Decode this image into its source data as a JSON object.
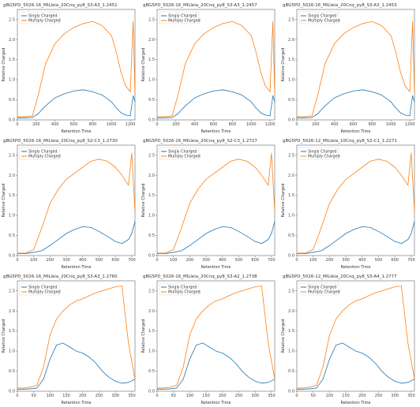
{
  "chart_data": [
    {
      "type": "line",
      "title": "gBG5PD_5026-16_MILleia_20Cnq_py8_S3-A3_1.2451",
      "xlabel": "Retention Time",
      "ylabel": "Relative Charged",
      "xticks": [
        0,
        200,
        400,
        600,
        800,
        1000,
        1200
      ],
      "xlim": [
        0,
        1250
      ],
      "yticks": [
        0.0,
        0.5,
        1.0,
        1.5,
        2.0,
        2.5
      ],
      "ylim": [
        0,
        2.75
      ],
      "series": [
        {
          "name": "Singly Charged",
          "color": "#1f77b4",
          "x": [
            0,
            80,
            160,
            220,
            300,
            400,
            500,
            600,
            700,
            800,
            900,
            1000,
            1050,
            1100,
            1150,
            1200,
            1230,
            1250
          ],
          "values": [
            0.05,
            0.05,
            0.06,
            0.15,
            0.35,
            0.55,
            0.65,
            0.72,
            0.75,
            0.7,
            0.62,
            0.45,
            0.3,
            0.18,
            0.12,
            0.1,
            0.6,
            0.45
          ]
        },
        {
          "name": "Multiply Charged",
          "color": "#ff7f0e",
          "x": [
            0,
            80,
            160,
            220,
            300,
            400,
            500,
            600,
            700,
            800,
            900,
            1000,
            1050,
            1100,
            1150,
            1200,
            1230,
            1250
          ],
          "values": [
            0.08,
            0.08,
            0.1,
            0.6,
            1.4,
            1.9,
            2.15,
            2.3,
            2.4,
            2.45,
            2.35,
            2.1,
            1.7,
            1.2,
            0.85,
            0.7,
            2.45,
            0.65
          ]
        }
      ]
    },
    {
      "type": "line",
      "title": "gBG5PD_5026-16_MILleia_20Cnq_py8_S3-A3_1.2457",
      "xlabel": "Retention Time",
      "ylabel": "Relative Charged",
      "xticks": [
        0,
        200,
        400,
        600,
        800,
        1000,
        1200
      ],
      "xlim": [
        0,
        1250
      ],
      "yticks": [
        0.0,
        0.5,
        1.0,
        1.5,
        2.0,
        2.5
      ],
      "ylim": [
        0,
        2.75
      ],
      "series": [
        {
          "name": "Singly Charged",
          "color": "#1f77b4",
          "x": [
            0,
            80,
            160,
            220,
            300,
            400,
            500,
            600,
            700,
            800,
            900,
            1000,
            1050,
            1100,
            1150,
            1200,
            1230,
            1250
          ],
          "values": [
            0.05,
            0.05,
            0.06,
            0.15,
            0.35,
            0.55,
            0.65,
            0.72,
            0.75,
            0.7,
            0.62,
            0.45,
            0.3,
            0.18,
            0.12,
            0.1,
            0.6,
            0.45
          ]
        },
        {
          "name": "Multiply Charged",
          "color": "#ff7f0e",
          "x": [
            0,
            80,
            160,
            220,
            300,
            400,
            500,
            600,
            700,
            800,
            900,
            1000,
            1050,
            1100,
            1150,
            1200,
            1230,
            1250
          ],
          "values": [
            0.08,
            0.08,
            0.1,
            0.6,
            1.4,
            1.9,
            2.15,
            2.3,
            2.4,
            2.45,
            2.35,
            2.1,
            1.7,
            1.2,
            0.85,
            0.7,
            2.45,
            0.65
          ]
        }
      ]
    },
    {
      "type": "line",
      "title": "gBG5PD_5026-16_MILleia_20Cnq_py8_S3-A3_1.2453",
      "xlabel": "Retention Time",
      "ylabel": "Relative Charged",
      "xticks": [
        0,
        200,
        400,
        600,
        800,
        1000,
        1200
      ],
      "xlim": [
        0,
        1250
      ],
      "yticks": [
        0.0,
        0.5,
        1.0,
        1.5,
        2.0,
        2.5
      ],
      "ylim": [
        0,
        2.75
      ],
      "series": [
        {
          "name": "Singly Charged",
          "color": "#1f77b4",
          "x": [
            0,
            80,
            160,
            220,
            300,
            400,
            500,
            600,
            700,
            800,
            900,
            1000,
            1050,
            1100,
            1150,
            1200,
            1230,
            1250
          ],
          "values": [
            0.05,
            0.05,
            0.06,
            0.15,
            0.35,
            0.55,
            0.65,
            0.72,
            0.75,
            0.7,
            0.62,
            0.45,
            0.3,
            0.18,
            0.12,
            0.1,
            0.6,
            0.45
          ]
        },
        {
          "name": "Multiply Charged",
          "color": "#ff7f0e",
          "x": [
            0,
            80,
            160,
            220,
            300,
            400,
            500,
            600,
            700,
            800,
            900,
            1000,
            1050,
            1100,
            1150,
            1200,
            1230,
            1250
          ],
          "values": [
            0.08,
            0.08,
            0.1,
            0.6,
            1.4,
            1.9,
            2.15,
            2.3,
            2.4,
            2.45,
            2.35,
            2.1,
            1.7,
            1.2,
            0.85,
            0.7,
            2.45,
            0.65
          ]
        }
      ]
    },
    {
      "type": "line",
      "title": "gBG5PD_5026-16_MILleia_20Cnq_py8_S2-C3_1.2730",
      "xlabel": "Retention Time",
      "ylabel": "Relative Charged",
      "xticks": [
        0,
        100,
        200,
        300,
        400,
        500,
        600,
        700
      ],
      "xlim": [
        0,
        720
      ],
      "yticks": [
        0.0,
        0.5,
        1.0,
        1.5,
        2.0,
        2.5
      ],
      "ylim": [
        0,
        2.75
      ],
      "series": [
        {
          "name": "Singly Charged",
          "color": "#1f77b4",
          "x": [
            0,
            50,
            100,
            150,
            200,
            250,
            300,
            350,
            400,
            450,
            500,
            550,
            600,
            640,
            680,
            700,
            720
          ],
          "values": [
            0.05,
            0.05,
            0.08,
            0.12,
            0.25,
            0.4,
            0.55,
            0.65,
            0.72,
            0.7,
            0.6,
            0.48,
            0.35,
            0.3,
            0.4,
            0.55,
            0.85
          ]
        },
        {
          "name": "Multiply Charged",
          "color": "#ff7f0e",
          "x": [
            0,
            50,
            100,
            150,
            200,
            250,
            300,
            350,
            400,
            450,
            500,
            550,
            600,
            640,
            680,
            700,
            720
          ],
          "values": [
            0.06,
            0.06,
            0.15,
            0.7,
            1.3,
            1.65,
            1.9,
            2.05,
            2.2,
            2.35,
            2.4,
            2.35,
            2.2,
            2.0,
            1.75,
            2.55,
            1.1
          ]
        }
      ]
    },
    {
      "type": "line",
      "title": "gBG5PD_5026-16_MILleia_20Cnq_py8_S2-C3_1.2727",
      "xlabel": "Retention Time",
      "ylabel": "Relative Charged",
      "xticks": [
        0,
        100,
        200,
        300,
        400,
        500,
        600,
        700
      ],
      "xlim": [
        0,
        720
      ],
      "yticks": [
        0.0,
        0.5,
        1.0,
        1.5,
        2.0,
        2.5
      ],
      "ylim": [
        0,
        2.75
      ],
      "series": [
        {
          "name": "Singly Charged",
          "color": "#1f77b4",
          "x": [
            0,
            50,
            100,
            150,
            200,
            250,
            300,
            350,
            400,
            450,
            500,
            550,
            600,
            640,
            680,
            700,
            720
          ],
          "values": [
            0.05,
            0.05,
            0.08,
            0.12,
            0.25,
            0.4,
            0.55,
            0.65,
            0.72,
            0.7,
            0.6,
            0.48,
            0.35,
            0.3,
            0.4,
            0.55,
            0.85
          ]
        },
        {
          "name": "Multiply Charged",
          "color": "#ff7f0e",
          "x": [
            0,
            50,
            100,
            150,
            200,
            250,
            300,
            350,
            400,
            450,
            500,
            550,
            600,
            640,
            680,
            700,
            720
          ],
          "values": [
            0.06,
            0.06,
            0.15,
            0.7,
            1.3,
            1.65,
            1.9,
            2.05,
            2.2,
            2.35,
            2.4,
            2.35,
            2.2,
            2.0,
            1.75,
            2.55,
            1.1
          ]
        }
      ]
    },
    {
      "type": "line",
      "title": "gBG5PD_5026-12_MILleia_10Cnq_py8_S2-C1_1.2271",
      "xlabel": "Retention Time",
      "ylabel": "Relative Charged",
      "xticks": [
        0,
        100,
        200,
        300,
        400,
        500,
        600,
        700
      ],
      "xlim": [
        0,
        720
      ],
      "yticks": [
        0.0,
        0.5,
        1.0,
        1.5,
        2.0,
        2.5
      ],
      "ylim": [
        0,
        2.75
      ],
      "series": [
        {
          "name": "Singly Charged",
          "color": "#1f77b4",
          "x": [
            0,
            50,
            100,
            150,
            200,
            250,
            300,
            350,
            400,
            450,
            500,
            550,
            600,
            640,
            680,
            700,
            720
          ],
          "values": [
            0.05,
            0.05,
            0.08,
            0.12,
            0.25,
            0.4,
            0.55,
            0.65,
            0.72,
            0.7,
            0.6,
            0.48,
            0.35,
            0.3,
            0.4,
            0.55,
            0.85
          ]
        },
        {
          "name": "Multiply Charged",
          "color": "#ff7f0e",
          "x": [
            0,
            50,
            100,
            150,
            200,
            250,
            300,
            350,
            400,
            450,
            500,
            550,
            600,
            640,
            680,
            700,
            720
          ],
          "values": [
            0.06,
            0.06,
            0.15,
            0.7,
            1.3,
            1.65,
            1.9,
            2.05,
            2.2,
            2.35,
            2.4,
            2.35,
            2.2,
            2.0,
            1.75,
            2.55,
            1.1
          ]
        }
      ]
    },
    {
      "type": "line",
      "title": "gBG5PD_5026-16_MILleia_20Cnq_py8_S3-A3_1.2760",
      "xlabel": "Retention Time",
      "ylabel": "Relative Charged",
      "xticks": [
        0,
        50,
        100,
        150,
        200,
        250,
        300,
        350
      ],
      "xlim": [
        0,
        360
      ],
      "yticks": [
        0.0,
        0.5,
        1.0,
        1.5,
        2.0,
        2.5
      ],
      "ylim": [
        0,
        2.75
      ],
      "series": [
        {
          "name": "Singly Charged",
          "color": "#1f77b4",
          "x": [
            0,
            20,
            40,
            60,
            80,
            100,
            120,
            140,
            160,
            180,
            200,
            220,
            240,
            260,
            280,
            300,
            320,
            340,
            360
          ],
          "values": [
            0.05,
            0.05,
            0.06,
            0.08,
            0.3,
            0.8,
            1.15,
            1.2,
            1.1,
            1.0,
            0.95,
            0.85,
            0.7,
            0.5,
            0.35,
            0.25,
            0.2,
            0.22,
            0.3
          ]
        },
        {
          "name": "Multiply Charged",
          "color": "#ff7f0e",
          "x": [
            0,
            20,
            40,
            60,
            80,
            100,
            120,
            140,
            160,
            180,
            200,
            220,
            240,
            260,
            280,
            300,
            320,
            340,
            360
          ],
          "values": [
            0.08,
            0.08,
            0.1,
            0.15,
            0.6,
            1.4,
            1.8,
            2.0,
            2.15,
            2.25,
            2.3,
            2.38,
            2.45,
            2.5,
            2.55,
            2.6,
            2.62,
            1.2,
            0.3
          ]
        }
      ]
    },
    {
      "type": "line",
      "title": "gBG5PD_5026-16_MILleia_20Cnq_py8_S3-A2_1.2738",
      "xlabel": "Retention Time",
      "ylabel": "Relative Charged",
      "xticks": [
        0,
        50,
        100,
        150,
        200,
        250,
        300,
        350
      ],
      "xlim": [
        0,
        360
      ],
      "yticks": [
        0.0,
        0.5,
        1.0,
        1.5,
        2.0,
        2.5
      ],
      "ylim": [
        0,
        2.75
      ],
      "series": [
        {
          "name": "Singly Charged",
          "color": "#1f77b4",
          "x": [
            0,
            20,
            40,
            60,
            80,
            100,
            120,
            140,
            160,
            180,
            200,
            220,
            240,
            260,
            280,
            300,
            320,
            340,
            360
          ],
          "values": [
            0.05,
            0.05,
            0.06,
            0.08,
            0.3,
            0.8,
            1.15,
            1.2,
            1.1,
            1.0,
            0.95,
            0.85,
            0.7,
            0.5,
            0.35,
            0.25,
            0.2,
            0.22,
            0.3
          ]
        },
        {
          "name": "Multiply Charged",
          "color": "#ff7f0e",
          "x": [
            0,
            20,
            40,
            60,
            80,
            100,
            120,
            140,
            160,
            180,
            200,
            220,
            240,
            260,
            280,
            300,
            320,
            340,
            360
          ],
          "values": [
            0.08,
            0.08,
            0.1,
            0.15,
            0.6,
            1.4,
            1.8,
            2.0,
            2.15,
            2.25,
            2.3,
            2.38,
            2.45,
            2.5,
            2.55,
            2.6,
            2.62,
            1.2,
            0.3
          ]
        }
      ]
    },
    {
      "type": "line",
      "title": "gBG5PD_5026-12_MILleia_20Cnq_py8_S3-A4_1.2777",
      "xlabel": "Retention Time",
      "ylabel": "Relative Charged",
      "xticks": [
        0,
        50,
        100,
        150,
        200,
        250,
        300,
        350
      ],
      "xlim": [
        0,
        360
      ],
      "yticks": [
        0.0,
        0.5,
        1.0,
        1.5,
        2.0,
        2.5
      ],
      "ylim": [
        0,
        2.75
      ],
      "series": [
        {
          "name": "Singly Charged",
          "color": "#1f77b4",
          "x": [
            0,
            20,
            40,
            60,
            80,
            100,
            120,
            140,
            160,
            180,
            200,
            220,
            240,
            260,
            280,
            300,
            320,
            340,
            360
          ],
          "values": [
            0.05,
            0.05,
            0.06,
            0.08,
            0.3,
            0.8,
            1.15,
            1.2,
            1.1,
            1.0,
            0.95,
            0.85,
            0.7,
            0.5,
            0.35,
            0.25,
            0.2,
            0.22,
            0.3
          ]
        },
        {
          "name": "Multiply Charged",
          "color": "#ff7f0e",
          "x": [
            0,
            20,
            40,
            60,
            80,
            100,
            120,
            140,
            160,
            180,
            200,
            220,
            240,
            260,
            280,
            300,
            320,
            340,
            360
          ],
          "values": [
            0.08,
            0.08,
            0.1,
            0.15,
            0.6,
            1.4,
            1.8,
            2.0,
            2.15,
            2.25,
            2.3,
            2.38,
            2.45,
            2.5,
            2.55,
            2.6,
            2.62,
            1.2,
            0.3
          ]
        }
      ]
    }
  ]
}
